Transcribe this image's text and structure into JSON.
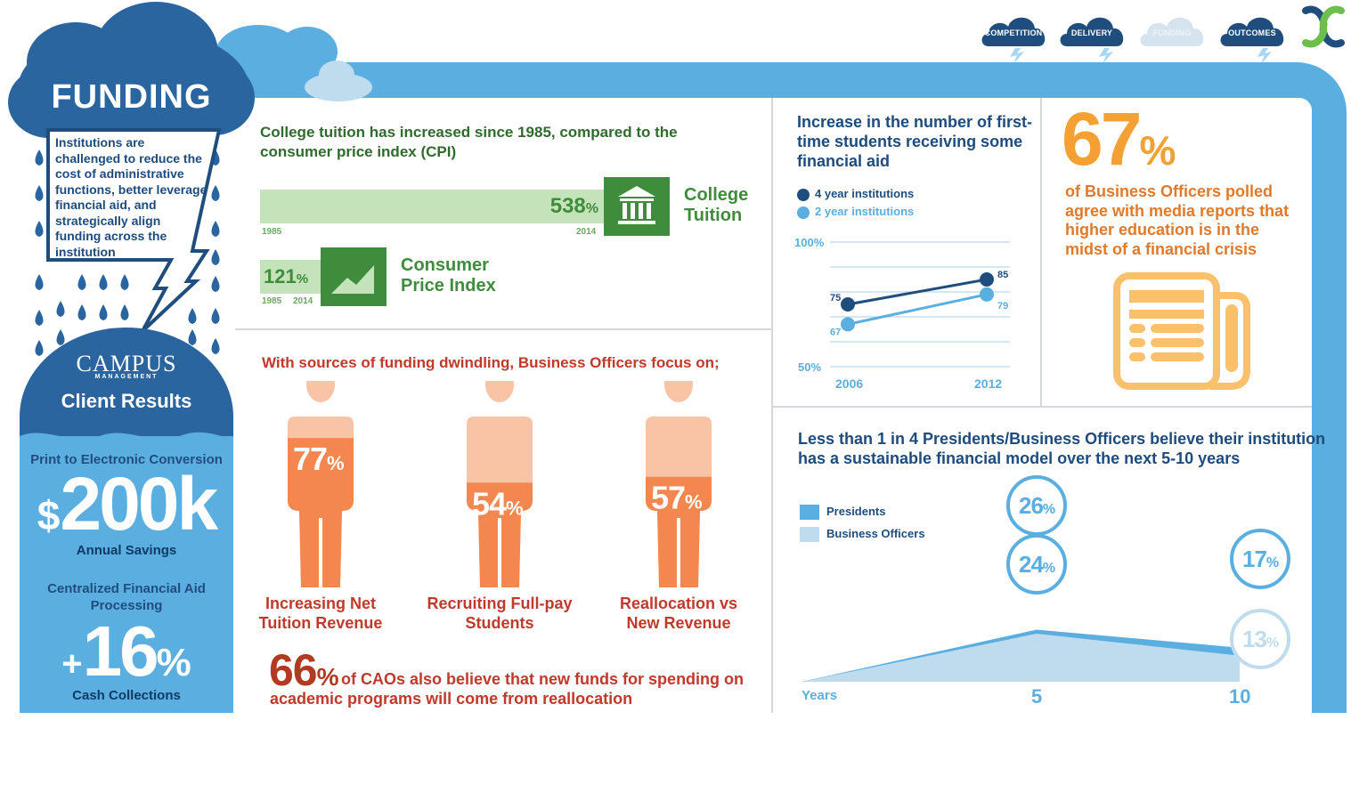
{
  "nav": {
    "items": [
      {
        "label": "COMPETITION"
      },
      {
        "label": "DELIVERY"
      },
      {
        "label": "FUNDING"
      },
      {
        "label": "OUTCOMES"
      }
    ]
  },
  "sidebar": {
    "title": "FUNDING",
    "intro": "Institutions are challenged to reduce the cost of administrative functions, better leverage financial aid, and strategically align funding across the institution",
    "brand_main": "CAMPUS",
    "brand_sub": "MANAGEMENT",
    "client_results": "Client Results",
    "stat1_label": "Print to Electronic Conversion",
    "stat1_prefix": "$",
    "stat1_value": "200k",
    "stat1_caption": "Annual Savings",
    "stat2_label": "Centralized Financial Aid Processing",
    "stat2_prefix": "+",
    "stat2_value": "16",
    "stat2_suffix": "%",
    "stat2_caption": "Cash Collections"
  },
  "tuition": {
    "title": "College tuition has increased since 1985, compared to the consumer price index (CPI)",
    "college_value": "538",
    "college_label_1": "College",
    "college_label_2": "Tuition",
    "cpi_value": "121",
    "cpi_label_1": "Consumer",
    "cpi_label_2": "Price Index",
    "year_start": "1985",
    "year_end": "2014",
    "pct": "%"
  },
  "focus": {
    "title": "With sources of funding dwindling, Business Officers focus on;",
    "items": [
      {
        "value": "77",
        "label_1": "Increasing Net",
        "label_2": "Tuition Revenue",
        "pct": 77
      },
      {
        "value": "54",
        "label_1": "Recruiting Full-pay",
        "label_2": "Students",
        "pct": 54
      },
      {
        "value": "57",
        "label_1": "Reallocation vs",
        "label_2": "New Revenue",
        "pct": 57
      }
    ],
    "cao_value": "66",
    "cao_text_1": "of CAOs also believe that new funds for spending on",
    "cao_text_2": "academic programs will come from reallocation",
    "pct": "%"
  },
  "aid": {
    "title_1": "Increase in the number of first-",
    "title_2": "time students receiving some",
    "title_3": "financial aid",
    "legend_4yr": "4 year institutions",
    "legend_2yr": "2 year institutions",
    "y_top": "100%",
    "y_bottom": "50%",
    "x_start": "2006",
    "x_end": "2012",
    "v4_start": "75",
    "v4_end": "85",
    "v2_start": "67",
    "v2_end": "79",
    "colors": {
      "four_year": "#1f4e7e",
      "two_year": "#5aaee0"
    }
  },
  "crisis": {
    "value": "67",
    "pct": "%",
    "text": "of Business Officers polled agree with media reports that higher education is in the midst of a financial crisis",
    "icon": "newspaper-icon"
  },
  "sustain": {
    "title_1": "Less than 1 in 4 Presidents/Business Officers believe their institution",
    "title_2": "has a sustainable financial model over the next 5-10 years",
    "legend_presidents": "Presidents",
    "legend_officers": "Business Officers",
    "x_label": "Years",
    "x_5": "5",
    "x_10": "10",
    "p5": "26",
    "b5": "24",
    "p10": "17",
    "b10": "13",
    "pct": "%"
  },
  "chart_data": [
    {
      "type": "bar",
      "title": "College tuition has increased since 1985, compared to the consumer price index (CPI)",
      "categories": [
        "College Tuition",
        "Consumer Price Index"
      ],
      "values": [
        538,
        121
      ],
      "unit": "%",
      "period": [
        "1985",
        "2014"
      ]
    },
    {
      "type": "line",
      "title": "Increase in the number of first-time students receiving some financial aid",
      "x": [
        "2006",
        "2012"
      ],
      "ylim": [
        50,
        100
      ],
      "series": [
        {
          "name": "4 year institutions",
          "values": [
            75,
            85
          ]
        },
        {
          "name": "2 year institutions",
          "values": [
            67,
            79
          ]
        }
      ]
    },
    {
      "type": "area",
      "title": "Less than 1 in 4 Presidents/Business Officers believe their institution has a sustainable financial model over the next 5-10 years",
      "xlabel": "Years",
      "x": [
        "5",
        "10"
      ],
      "series": [
        {
          "name": "Presidents",
          "values": [
            26,
            17
          ]
        },
        {
          "name": "Business Officers",
          "values": [
            24,
            13
          ]
        }
      ]
    },
    {
      "type": "bar",
      "title": "With sources of funding dwindling, Business Officers focus on;",
      "categories": [
        "Increasing Net Tuition Revenue",
        "Recruiting Full-pay Students",
        "Reallocation vs New Revenue"
      ],
      "values": [
        77,
        54,
        57
      ],
      "unit": "%"
    }
  ]
}
